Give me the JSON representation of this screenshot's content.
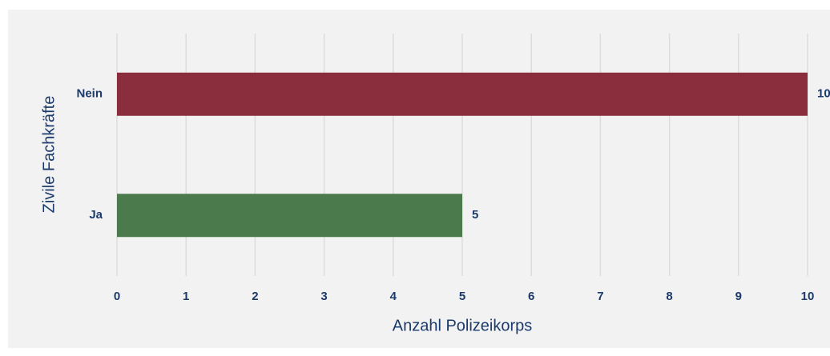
{
  "chart_data": {
    "type": "bar",
    "orientation": "horizontal",
    "categories": [
      "Nein",
      "Ja"
    ],
    "values": [
      10,
      5
    ],
    "colors": [
      "#8a2e3d",
      "#4b7b4d"
    ],
    "xlabel": "Anzahl Polizeikorps",
    "ylabel": "Zivile Fachkräfte",
    "xlim": [
      0,
      10
    ],
    "xticks": [
      0,
      1,
      2,
      3,
      4,
      5,
      6,
      7,
      8,
      9,
      10
    ],
    "grid": true
  }
}
